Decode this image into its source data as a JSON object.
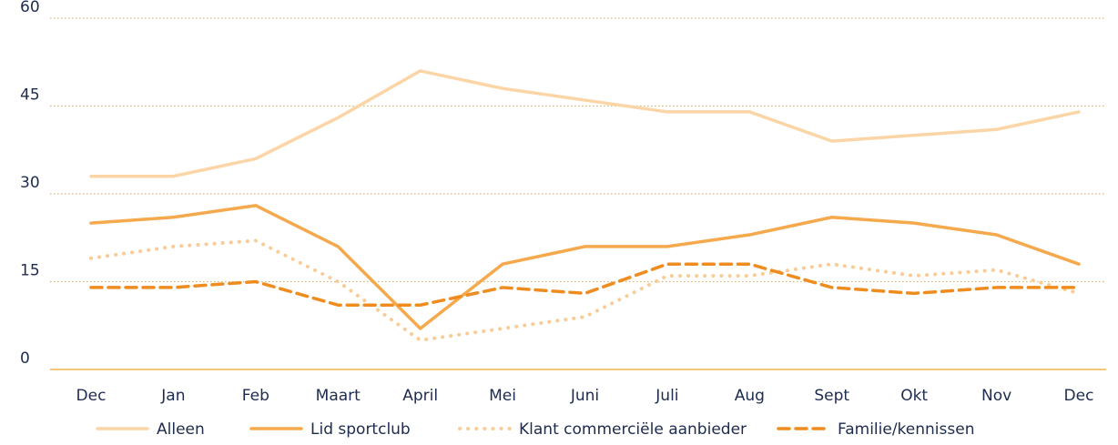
{
  "chart_data": {
    "type": "line",
    "categories": [
      "Dec",
      "Jan",
      "Feb",
      "Maart",
      "April",
      "Mei",
      "Juni",
      "Juli",
      "Aug",
      "Sept",
      "Okt",
      "Nov",
      "Dec"
    ],
    "series": [
      {
        "name": "Alleen",
        "color": "#fbd5a6",
        "style": "solid",
        "values": [
          33,
          33,
          36,
          43,
          51,
          48,
          46,
          44,
          44,
          39,
          40,
          41,
          44
        ]
      },
      {
        "name": "Lid sportclub",
        "color": "#f5a94c",
        "style": "solid",
        "values": [
          25,
          26,
          28,
          21,
          7,
          18,
          21,
          21,
          23,
          26,
          25,
          23,
          18
        ]
      },
      {
        "name": "Klant commerciële aanbieder",
        "color": "#f9cc95",
        "style": "dotted",
        "values": [
          19,
          21,
          22,
          15,
          5,
          7,
          9,
          16,
          16,
          18,
          16,
          17,
          13
        ]
      },
      {
        "name": "Familie/kennissen",
        "color": "#ef8c1f",
        "style": "dashed",
        "values": [
          14,
          14,
          15,
          11,
          11,
          14,
          13,
          18,
          18,
          14,
          13,
          14,
          14
        ]
      }
    ],
    "ylim": [
      0,
      60
    ],
    "yticks": [
      0,
      15,
      30,
      45,
      60
    ],
    "grid": true
  }
}
